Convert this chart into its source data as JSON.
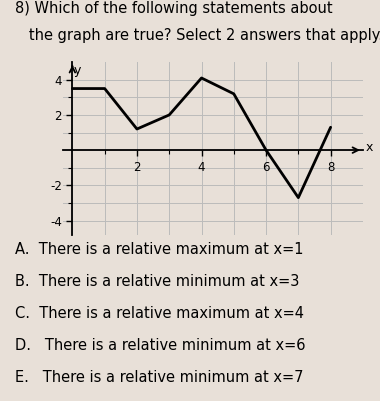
{
  "title_line1": "8) Which of the following statements about",
  "title_line2": "   the graph are true? Select 2 answers that apply.",
  "x_points": [
    0,
    1,
    2,
    3,
    4,
    5,
    6,
    7,
    8
  ],
  "y_points": [
    3.5,
    3.5,
    1.2,
    2.0,
    4.1,
    3.2,
    0.0,
    -2.7,
    1.3
  ],
  "xlabel": "x",
  "ylabel": "y",
  "xlim": [
    -0.3,
    9.0
  ],
  "ylim": [
    -4.8,
    5.0
  ],
  "xticks": [
    2,
    4,
    6,
    8
  ],
  "yticks": [
    -4,
    -2,
    2,
    4
  ],
  "grid_color": "#bbbbbb",
  "line_color": "#000000",
  "bg_color": "#e8e0d8",
  "answers": [
    "A.  There is a relative maximum at x=1",
    "B.  There is a relative minimum at x=3",
    "C.  There is a relative maximum at x=4",
    "D.   There is a relative minimum at x=6",
    "E.   There is a relative minimum at x=7"
  ],
  "answer_fontsize": 10.5,
  "title_fontsize": 10.5
}
